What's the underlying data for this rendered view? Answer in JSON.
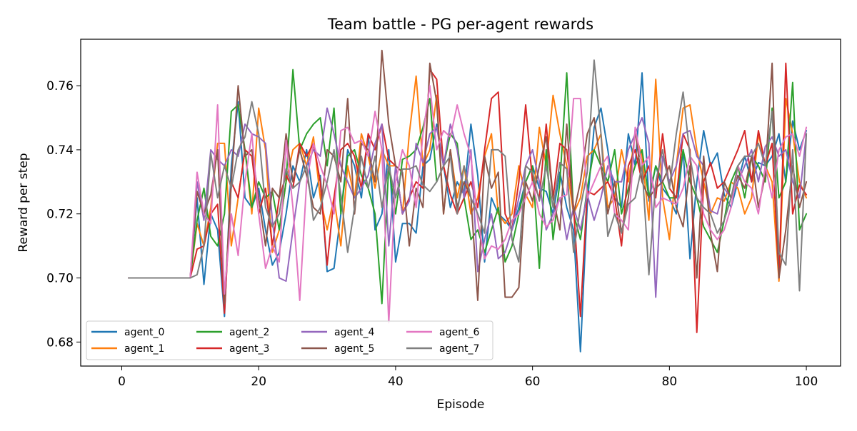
{
  "chart_data": {
    "type": "line",
    "title": "Team battle - PG per-agent rewards",
    "xlabel": "Episode",
    "ylabel": "Reward per step",
    "xlim": [
      -6,
      105
    ],
    "ylim": [
      0.6725,
      0.7745
    ],
    "xticks": [
      0,
      20,
      40,
      60,
      80,
      100
    ],
    "yticks": [
      0.68,
      0.7,
      0.72,
      0.74,
      0.76
    ],
    "ytick_labels": [
      "0.68",
      "0.70",
      "0.72",
      "0.74",
      "0.76"
    ],
    "grid": false,
    "legend": {
      "placement": "bottom-left",
      "columns": 4
    },
    "series": [
      {
        "name": "agent_0",
        "color": "#1f77b4",
        "values": [
          0.7,
          0.7,
          0.7,
          0.7,
          0.7,
          0.7,
          0.7,
          0.7,
          0.7,
          0.7,
          0.725,
          0.698,
          0.72,
          0.715,
          0.688,
          0.735,
          0.755,
          0.725,
          0.722,
          0.728,
          0.715,
          0.704,
          0.708,
          0.72,
          0.735,
          0.73,
          0.74,
          0.725,
          0.732,
          0.702,
          0.703,
          0.72,
          0.74,
          0.735,
          0.725,
          0.745,
          0.715,
          0.72,
          0.74,
          0.705,
          0.717,
          0.717,
          0.714,
          0.735,
          0.737,
          0.748,
          0.735,
          0.722,
          0.73,
          0.726,
          0.748,
          0.732,
          0.705,
          0.725,
          0.72,
          0.718,
          0.715,
          0.722,
          0.73,
          0.735,
          0.728,
          0.727,
          0.72,
          0.733,
          0.722,
          0.715,
          0.677,
          0.723,
          0.747,
          0.753,
          0.74,
          0.725,
          0.722,
          0.745,
          0.735,
          0.764,
          0.724,
          0.735,
          0.728,
          0.725,
          0.72,
          0.74,
          0.706,
          0.73,
          0.746,
          0.735,
          0.739,
          0.726,
          0.722,
          0.73,
          0.738,
          0.73,
          0.736,
          0.735,
          0.738,
          0.745,
          0.73,
          0.749,
          0.74,
          0.746
        ]
      },
      {
        "name": "agent_1",
        "color": "#ff7f0e",
        "values": [
          0.7,
          0.7,
          0.7,
          0.7,
          0.7,
          0.7,
          0.7,
          0.7,
          0.7,
          0.7,
          0.717,
          0.71,
          0.722,
          0.742,
          0.742,
          0.71,
          0.725,
          0.74,
          0.72,
          0.753,
          0.74,
          0.708,
          0.715,
          0.73,
          0.74,
          0.742,
          0.735,
          0.744,
          0.725,
          0.715,
          0.725,
          0.71,
          0.735,
          0.725,
          0.745,
          0.738,
          0.728,
          0.74,
          0.735,
          0.735,
          0.72,
          0.745,
          0.763,
          0.735,
          0.74,
          0.757,
          0.72,
          0.74,
          0.725,
          0.735,
          0.72,
          0.725,
          0.738,
          0.745,
          0.72,
          0.717,
          0.72,
          0.735,
          0.726,
          0.722,
          0.747,
          0.735,
          0.757,
          0.745,
          0.735,
          0.72,
          0.725,
          0.738,
          0.74,
          0.745,
          0.722,
          0.725,
          0.74,
          0.73,
          0.745,
          0.738,
          0.718,
          0.762,
          0.725,
          0.712,
          0.735,
          0.753,
          0.754,
          0.74,
          0.73,
          0.72,
          0.725,
          0.724,
          0.73,
          0.728,
          0.72,
          0.725,
          0.745,
          0.735,
          0.73,
          0.699,
          0.756,
          0.745,
          0.73,
          0.725
        ]
      },
      {
        "name": "agent_2",
        "color": "#2ca02c",
        "values": [
          0.7,
          0.7,
          0.7,
          0.7,
          0.7,
          0.7,
          0.7,
          0.7,
          0.7,
          0.7,
          0.718,
          0.728,
          0.713,
          0.71,
          0.72,
          0.752,
          0.754,
          0.74,
          0.722,
          0.73,
          0.725,
          0.727,
          0.715,
          0.73,
          0.765,
          0.74,
          0.745,
          0.748,
          0.75,
          0.735,
          0.753,
          0.72,
          0.738,
          0.74,
          0.732,
          0.728,
          0.72,
          0.692,
          0.735,
          0.72,
          0.737,
          0.738,
          0.74,
          0.747,
          0.756,
          0.73,
          0.735,
          0.745,
          0.742,
          0.725,
          0.712,
          0.715,
          0.708,
          0.715,
          0.722,
          0.705,
          0.71,
          0.72,
          0.73,
          0.735,
          0.703,
          0.74,
          0.712,
          0.73,
          0.764,
          0.72,
          0.712,
          0.728,
          0.74,
          0.735,
          0.73,
          0.74,
          0.72,
          0.728,
          0.735,
          0.74,
          0.725,
          0.735,
          0.73,
          0.725,
          0.725,
          0.74,
          0.73,
          0.725,
          0.716,
          0.712,
          0.708,
          0.718,
          0.73,
          0.735,
          0.725,
          0.738,
          0.735,
          0.73,
          0.753,
          0.725,
          0.73,
          0.761,
          0.715,
          0.72
        ]
      },
      {
        "name": "agent_3",
        "color": "#d62728",
        "values": [
          0.7,
          0.7,
          0.7,
          0.7,
          0.7,
          0.7,
          0.7,
          0.7,
          0.7,
          0.7,
          0.709,
          0.71,
          0.72,
          0.723,
          0.689,
          0.73,
          0.725,
          0.74,
          0.738,
          0.72,
          0.728,
          0.71,
          0.725,
          0.732,
          0.728,
          0.742,
          0.738,
          0.742,
          0.73,
          0.704,
          0.725,
          0.74,
          0.742,
          0.738,
          0.728,
          0.745,
          0.74,
          0.748,
          0.737,
          0.735,
          0.72,
          0.725,
          0.73,
          0.728,
          0.765,
          0.762,
          0.735,
          0.726,
          0.72,
          0.725,
          0.73,
          0.722,
          0.74,
          0.756,
          0.758,
          0.72,
          0.715,
          0.73,
          0.754,
          0.73,
          0.725,
          0.748,
          0.725,
          0.742,
          0.74,
          0.722,
          0.688,
          0.727,
          0.726,
          0.728,
          0.73,
          0.725,
          0.71,
          0.735,
          0.74,
          0.73,
          0.735,
          0.725,
          0.745,
          0.728,
          0.725,
          0.745,
          0.74,
          0.683,
          0.73,
          0.736,
          0.728,
          0.73,
          0.735,
          0.74,
          0.746,
          0.73,
          0.746,
          0.735,
          0.742,
          0.7,
          0.767,
          0.72,
          0.729,
          0.726
        ]
      },
      {
        "name": "agent_4",
        "color": "#9467bd",
        "values": [
          0.7,
          0.7,
          0.7,
          0.7,
          0.7,
          0.7,
          0.7,
          0.7,
          0.7,
          0.7,
          0.73,
          0.718,
          0.74,
          0.737,
          0.735,
          0.74,
          0.738,
          0.748,
          0.745,
          0.744,
          0.742,
          0.718,
          0.7,
          0.699,
          0.715,
          0.73,
          0.735,
          0.74,
          0.738,
          0.753,
          0.745,
          0.735,
          0.73,
          0.725,
          0.728,
          0.732,
          0.742,
          0.748,
          0.71,
          0.735,
          0.72,
          0.724,
          0.742,
          0.736,
          0.745,
          0.747,
          0.735,
          0.748,
          0.74,
          0.725,
          0.74,
          0.702,
          0.712,
          0.72,
          0.706,
          0.708,
          0.715,
          0.725,
          0.735,
          0.74,
          0.73,
          0.715,
          0.72,
          0.725,
          0.712,
          0.722,
          0.715,
          0.726,
          0.718,
          0.725,
          0.735,
          0.73,
          0.73,
          0.74,
          0.745,
          0.75,
          0.742,
          0.694,
          0.738,
          0.73,
          0.735,
          0.745,
          0.746,
          0.738,
          0.735,
          0.721,
          0.72,
          0.728,
          0.725,
          0.73,
          0.735,
          0.74,
          0.73,
          0.741,
          0.744,
          0.738,
          0.74,
          0.73,
          0.725,
          0.745
        ]
      },
      {
        "name": "agent_5",
        "color": "#8c564b",
        "values": [
          0.7,
          0.7,
          0.7,
          0.7,
          0.7,
          0.7,
          0.7,
          0.7,
          0.7,
          0.7,
          0.727,
          0.72,
          0.726,
          0.74,
          0.692,
          0.73,
          0.76,
          0.738,
          0.74,
          0.725,
          0.71,
          0.728,
          0.725,
          0.745,
          0.73,
          0.74,
          0.732,
          0.722,
          0.72,
          0.74,
          0.738,
          0.73,
          0.756,
          0.72,
          0.742,
          0.74,
          0.73,
          0.771,
          0.748,
          0.735,
          0.733,
          0.71,
          0.728,
          0.722,
          0.767,
          0.755,
          0.72,
          0.74,
          0.722,
          0.73,
          0.725,
          0.693,
          0.738,
          0.728,
          0.733,
          0.694,
          0.694,
          0.697,
          0.73,
          0.724,
          0.735,
          0.744,
          0.725,
          0.715,
          0.748,
          0.72,
          0.73,
          0.745,
          0.75,
          0.735,
          0.72,
          0.73,
          0.714,
          0.725,
          0.746,
          0.73,
          0.725,
          0.728,
          0.73,
          0.735,
          0.722,
          0.716,
          0.735,
          0.7,
          0.738,
          0.714,
          0.702,
          0.73,
          0.725,
          0.732,
          0.728,
          0.738,
          0.722,
          0.732,
          0.767,
          0.7,
          0.715,
          0.735,
          0.722,
          0.73
        ]
      },
      {
        "name": "agent_6",
        "color": "#e377c2",
        "values": [
          0.7,
          0.7,
          0.7,
          0.7,
          0.7,
          0.7,
          0.7,
          0.7,
          0.7,
          0.7,
          0.733,
          0.72,
          0.717,
          0.754,
          0.695,
          0.72,
          0.707,
          0.73,
          0.745,
          0.72,
          0.703,
          0.71,
          0.705,
          0.743,
          0.722,
          0.693,
          0.73,
          0.742,
          0.735,
          0.729,
          0.72,
          0.746,
          0.747,
          0.742,
          0.743,
          0.738,
          0.752,
          0.74,
          0.686,
          0.73,
          0.74,
          0.735,
          0.722,
          0.745,
          0.76,
          0.74,
          0.746,
          0.744,
          0.754,
          0.745,
          0.738,
          0.718,
          0.706,
          0.71,
          0.709,
          0.712,
          0.718,
          0.72,
          0.725,
          0.73,
          0.72,
          0.716,
          0.718,
          0.725,
          0.726,
          0.756,
          0.756,
          0.725,
          0.73,
          0.735,
          0.738,
          0.72,
          0.718,
          0.715,
          0.747,
          0.735,
          0.738,
          0.722,
          0.725,
          0.724,
          0.723,
          0.728,
          0.738,
          0.735,
          0.72,
          0.715,
          0.712,
          0.715,
          0.722,
          0.735,
          0.73,
          0.728,
          0.72,
          0.735,
          0.725,
          0.74,
          0.744,
          0.745,
          0.738,
          0.747
        ]
      },
      {
        "name": "agent_7",
        "color": "#7f7f7f",
        "values": [
          0.7,
          0.7,
          0.7,
          0.7,
          0.7,
          0.7,
          0.7,
          0.7,
          0.7,
          0.7,
          0.701,
          0.71,
          0.739,
          0.725,
          0.735,
          0.728,
          0.74,
          0.744,
          0.755,
          0.745,
          0.722,
          0.716,
          0.72,
          0.734,
          0.728,
          0.73,
          0.735,
          0.718,
          0.722,
          0.73,
          0.74,
          0.726,
          0.708,
          0.722,
          0.738,
          0.728,
          0.738,
          0.722,
          0.735,
          0.725,
          0.734,
          0.734,
          0.735,
          0.729,
          0.727,
          0.73,
          0.735,
          0.738,
          0.72,
          0.735,
          0.725,
          0.72,
          0.714,
          0.74,
          0.74,
          0.738,
          0.712,
          0.705,
          0.735,
          0.733,
          0.724,
          0.735,
          0.722,
          0.736,
          0.734,
          0.708,
          0.722,
          0.733,
          0.768,
          0.745,
          0.713,
          0.72,
          0.714,
          0.723,
          0.725,
          0.735,
          0.701,
          0.73,
          0.74,
          0.728,
          0.745,
          0.758,
          0.738,
          0.725,
          0.722,
          0.72,
          0.714,
          0.718,
          0.725,
          0.735,
          0.738,
          0.738,
          0.742,
          0.735,
          0.752,
          0.708,
          0.704,
          0.74,
          0.696,
          0.745
        ]
      }
    ]
  }
}
